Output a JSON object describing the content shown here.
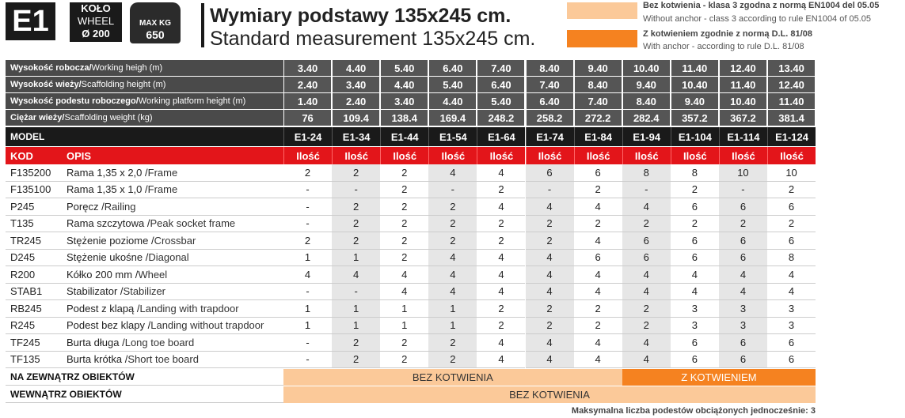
{
  "header": {
    "badge": "E1",
    "wheel": [
      "KOŁO",
      "WHEEL",
      "Ø 200"
    ],
    "weight": [
      "MAX KG",
      "650"
    ],
    "title": "Wymiary podstawy 135x245 cm.",
    "subtitle": "Standard measurement 135x245 cm."
  },
  "legend": [
    {
      "title": "Bez kotwienia - klasa 3 zgodna z normą EN1004 del 05.05",
      "text": "Without anchor - class 3 according to rule EN1004 of 05.05"
    },
    {
      "title": "Z kotwieniem zgodnie z normą D.L. 81/08",
      "text": "With anchor - according to rule D.L. 81/08"
    }
  ],
  "specs": [
    {
      "label": "Wysokość robocza/",
      "label_en": "Working heigh (m)",
      "values": [
        "3.40",
        "4.40",
        "5.40",
        "6.40",
        "7.40",
        "8.40",
        "9.40",
        "10.40",
        "11.40",
        "12.40",
        "13.40"
      ]
    },
    {
      "label": "Wysokość wieży/",
      "label_en": "Scaffolding height (m)",
      "values": [
        "2.40",
        "3.40",
        "4.40",
        "5.40",
        "6.40",
        "7.40",
        "8.40",
        "9.40",
        "10.40",
        "11.40",
        "12.40"
      ]
    },
    {
      "label": "Wysokość podestu roboczego/",
      "label_en": " Working platform height (m)",
      "values": [
        "1.40",
        "2.40",
        "3.40",
        "4.40",
        "5.40",
        "6.40",
        "7.40",
        "8.40",
        "9.40",
        "10.40",
        "11.40"
      ]
    },
    {
      "label": "Ciężar wieży/",
      "label_en": "Scaffolding weight (kg)",
      "values": [
        76,
        109.4,
        138.4,
        169.4,
        248.2,
        258.2,
        272.2,
        282.4,
        357.2,
        367.2,
        381.4
      ]
    }
  ],
  "model": {
    "label": "MODEL",
    "values": [
      "E1-24",
      "E1-34",
      "E1-44",
      "E1-54",
      "E1-64",
      "E1-74",
      "E1-84",
      "E1-94",
      "E1-104",
      "E1-114",
      "E1-124"
    ]
  },
  "table": {
    "columns": [
      "KOD",
      "OPIS",
      "Ilość",
      "Ilość",
      "Ilość",
      "Ilość",
      "Ilość",
      "Ilość",
      "Ilość",
      "Ilość",
      "Ilość",
      "Ilość",
      "Ilość"
    ],
    "rows": [
      {
        "code": "F135200",
        "name": "Rama 1,35 x 2,0 / ",
        "name_en": "Frame",
        "values": [
          2,
          2,
          2,
          4,
          4,
          6,
          6,
          8,
          8,
          10,
          10
        ]
      },
      {
        "code": "F135100",
        "name": "Rama 1,35 x 1,0 / ",
        "name_en": "Frame",
        "values": [
          "-",
          "-",
          2,
          "-",
          2,
          "-",
          2,
          "-",
          2,
          "-",
          2
        ]
      },
      {
        "code": "P245",
        "name": "Poręcz / ",
        "name_en": "Railing",
        "values": [
          "-",
          2,
          2,
          2,
          4,
          4,
          4,
          4,
          6,
          6,
          6
        ]
      },
      {
        "code": "T135",
        "name": "Rama szczytowa / ",
        "name_en": "Peak socket frame",
        "values": [
          "-",
          2,
          2,
          2,
          2,
          2,
          2,
          2,
          2,
          2,
          2
        ]
      },
      {
        "code": "TR245",
        "name": "Stężenie poziome / ",
        "name_en": "Crossbar",
        "values": [
          2,
          2,
          2,
          2,
          2,
          2,
          4,
          6,
          6,
          6,
          6
        ]
      },
      {
        "code": "D245",
        "name": "Stężenie ukośne / ",
        "name_en": "Diagonal",
        "values": [
          1,
          1,
          2,
          4,
          4,
          4,
          6,
          6,
          6,
          6,
          8
        ]
      },
      {
        "code": "R200",
        "name": "Kółko 200 mm / ",
        "name_en": "Wheel",
        "values": [
          4,
          4,
          4,
          4,
          4,
          4,
          4,
          4,
          4,
          4,
          4
        ]
      },
      {
        "code": "STAB1",
        "name": "Stabilizator / ",
        "name_en": "Stabilizer",
        "values": [
          "-",
          "-",
          4,
          4,
          4,
          4,
          4,
          4,
          4,
          4,
          4
        ]
      },
      {
        "code": "RB245",
        "name": "Podest z klapą / ",
        "name_en": "Landing with trapdoor",
        "values": [
          1,
          1,
          1,
          1,
          2,
          2,
          2,
          2,
          3,
          3,
          3
        ]
      },
      {
        "code": "R245",
        "name": "Podest bez klapy / ",
        "name_en": "Landing without trapdoor",
        "values": [
          1,
          1,
          1,
          1,
          2,
          2,
          2,
          2,
          3,
          3,
          3
        ]
      },
      {
        "code": "TF245",
        "name": "Burta długa / ",
        "name_en": "Long toe board",
        "values": [
          "-",
          2,
          2,
          2,
          4,
          4,
          4,
          4,
          6,
          6,
          6
        ]
      },
      {
        "code": "TF135",
        "name": "Burta krótka / ",
        "name_en": "Short toe board",
        "values": [
          "-",
          2,
          2,
          2,
          4,
          4,
          4,
          4,
          6,
          6,
          6
        ]
      }
    ]
  },
  "usage": [
    {
      "label": "NA ZEWNĄTRZ OBIEKTÓW",
      "segments": [
        "BEZ KOTWIENIA",
        "Z KOTWIENIEM"
      ]
    },
    {
      "label": "WEWNĄTRZ OBIEKTÓW",
      "segments": [
        "BEZ KOTWIENIA"
      ]
    }
  ],
  "note": "Maksymalna liczba podestów obciążonych jednocześnie: 3"
}
